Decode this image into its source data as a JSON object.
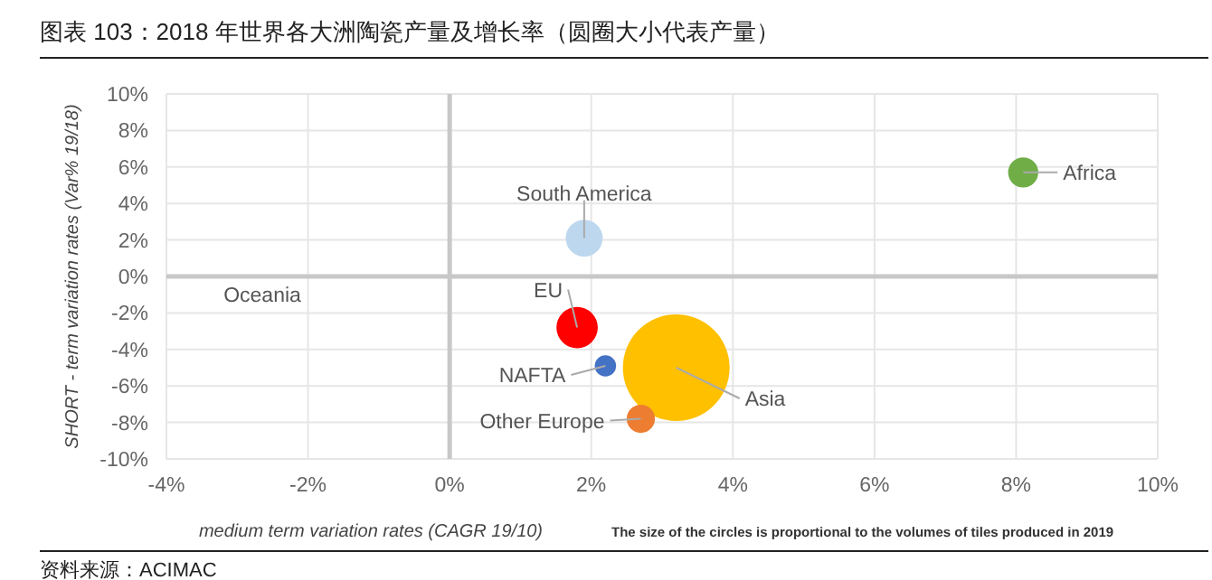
{
  "chart_data": {
    "type": "bubble",
    "title": "图表 103：2018 年世界各大洲陶瓷产量及增长率（圆圈大小代表产量）",
    "xlabel": "medium term variation rates (CAGR 19/10)",
    "ylabel": "SHORT - term variation rates (Var% 19/18)",
    "series": [
      {
        "name": "Africa",
        "color": "#70ad47",
        "x": [
          8.1
        ],
        "values": [
          5.7
        ],
        "sizes": [
          0.08
        ]
      },
      {
        "name": "South America",
        "color": "#bdd7ee",
        "x": [
          1.9
        ],
        "values": [
          2.1
        ],
        "sizes": [
          0.12
        ]
      },
      {
        "name": "EU",
        "color": "#ff0000",
        "x": [
          1.8
        ],
        "values": [
          -2.8
        ],
        "sizes": [
          0.15
        ]
      },
      {
        "name": "NAFTA",
        "color": "#4472c4",
        "x": [
          2.2
        ],
        "values": [
          -4.9
        ],
        "sizes": [
          0.04
        ]
      },
      {
        "name": "Asia",
        "color": "#ffc000",
        "x": [
          3.2
        ],
        "values": [
          -5.0
        ],
        "sizes": [
          1
        ]
      },
      {
        "name": "Other Europe",
        "color": "#ed7d31",
        "x": [
          2.7
        ],
        "values": [
          -7.8
        ],
        "sizes": [
          0.07
        ]
      }
    ],
    "xlim": [
      -4,
      10
    ],
    "xticks": [
      {
        "value": -4,
        "label": "-4%"
      },
      {
        "value": -2,
        "label": "-2%"
      },
      {
        "value": 0,
        "label": "0%"
      },
      {
        "value": 2,
        "label": "2%"
      },
      {
        "value": 4,
        "label": "4%"
      },
      {
        "value": 6,
        "label": "6%"
      },
      {
        "value": 8,
        "label": "8%"
      },
      {
        "value": 10,
        "label": "10%"
      }
    ],
    "ylim": [
      -10,
      10
    ],
    "yticks": [
      {
        "value": -10,
        "label": "-10%"
      },
      {
        "value": -8,
        "label": "-8%"
      },
      {
        "value": -6,
        "label": "-6%"
      },
      {
        "value": -4,
        "label": "-4%"
      },
      {
        "value": -2,
        "label": "-2%"
      },
      {
        "value": 0,
        "label": "0%"
      },
      {
        "value": 2,
        "label": "2%"
      },
      {
        "value": 4,
        "label": "4%"
      },
      {
        "value": 6,
        "label": "6%"
      },
      {
        "value": 8,
        "label": "8%"
      },
      {
        "value": 10,
        "label": "10%"
      }
    ],
    "grid": true,
    "legend": false,
    "annotations": [
      "Oceania",
      "The size of the circles is proportional to the volumes of tiles produced in 2019",
      "资料来源：ACIMAC"
    ]
  }
}
